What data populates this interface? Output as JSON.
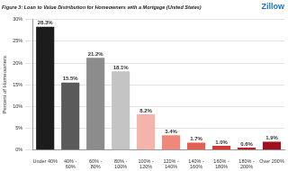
{
  "chart_data": {
    "type": "bar",
    "title": "Figure 3: Loan to Value Distribution for Homeowners with a Mortgage (United States)",
    "logo": "Zillow",
    "y_label": "Percent of Homeowners",
    "categories": [
      "Under 40%",
      "40% - 60%",
      "60% - 80%",
      "80% - 100%",
      "100% - 120%",
      "120% - 140%",
      "140% - 160%",
      "160% - 180%",
      "180% - 200%",
      "Over 200%"
    ],
    "values": [
      28.3,
      15.5,
      21.2,
      18.1,
      8.2,
      3.4,
      1.7,
      1.0,
      0.6,
      1.9
    ],
    "value_labels": [
      "28.3%",
      "15.5%",
      "21.2%",
      "18.1%",
      "8.2%",
      "3.4%",
      "1.7%",
      "1.0%",
      "0.6%",
      "1.9%"
    ],
    "colors": [
      "#1c1c1c",
      "#5a5a5a",
      "#8c8c8c",
      "#c4c4c4",
      "#f4b3ab",
      "#ef8878",
      "#e2604f",
      "#cf3b33",
      "#b8222a",
      "#a0101e"
    ],
    "ylim": [
      0,
      30
    ],
    "yticks": [
      {
        "value": 0,
        "label": "0%"
      },
      {
        "value": 5,
        "label": "5%"
      },
      {
        "value": 10,
        "label": "10%"
      },
      {
        "value": 15,
        "label": "15%"
      },
      {
        "value": 20,
        "label": "20%"
      },
      {
        "value": 25,
        "label": "25%"
      },
      {
        "value": 30,
        "label": "30%"
      }
    ],
    "grid": true,
    "data_labels": true
  }
}
